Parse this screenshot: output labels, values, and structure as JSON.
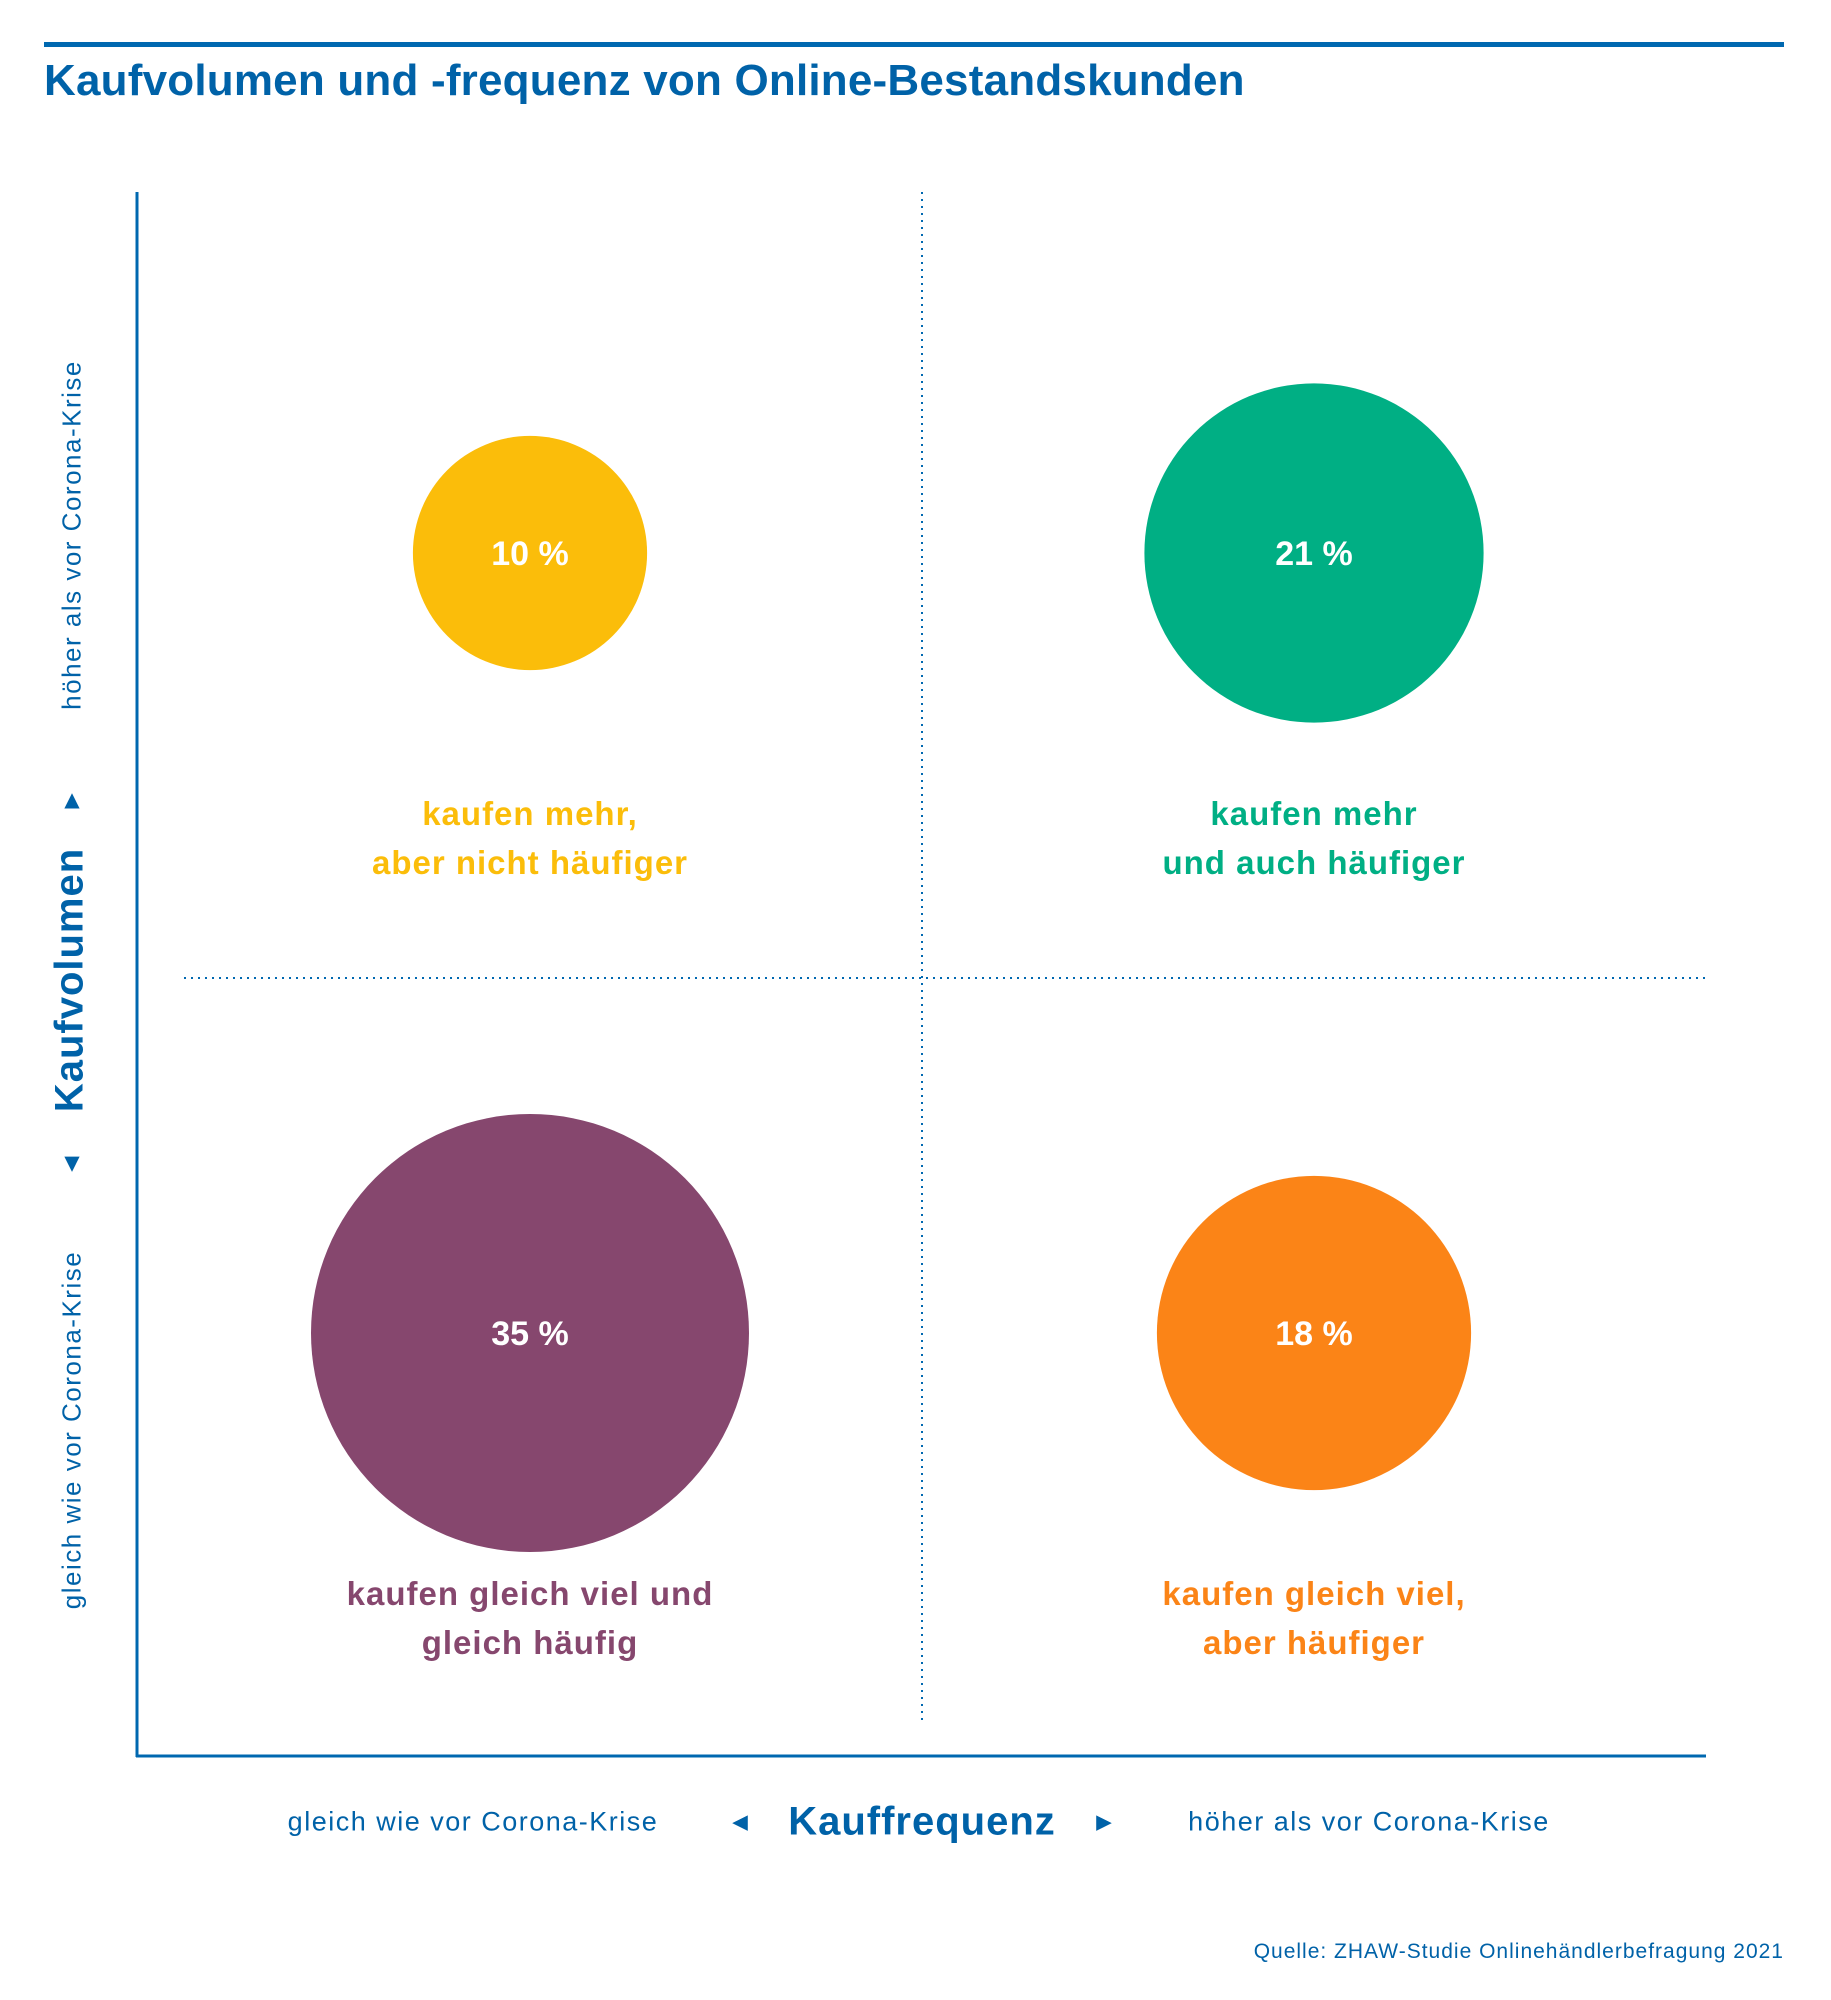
{
  "title": "Kaufvolumen und -frequenz von Online-Bestandskunden",
  "source": "Quelle: ZHAW-Studie Onlinehändlerbefragung 2021",
  "colors": {
    "axis": "#0068b0",
    "text": "#0062a8",
    "q10": "#fbbd0a",
    "q21": "#00af84",
    "q35": "#86476e",
    "q18": "#fb8417"
  },
  "chart_data": {
    "type": "scatter",
    "title": "Kaufvolumen und -frequenz von Online-Bestandskunden",
    "xlabel": "Kauffrequenz",
    "ylabel": "Kaufvolumen",
    "x_categories": [
      "gleich wie vor Corona-Krise",
      "höher als vor Corona-Krise"
    ],
    "y_categories": [
      "gleich wie vor Corona-Krise",
      "höher als vor Corona-Krise"
    ],
    "grid": "dotted quadrant dividers",
    "points": [
      {
        "x": "gleich wie vor Corona-Krise",
        "y": "höher als vor Corona-Krise",
        "value": 10,
        "label": "10 %",
        "caption": [
          "kaufen mehr,",
          "aber nicht häufiger"
        ],
        "color": "#fbbd0a"
      },
      {
        "x": "höher als vor Corona-Krise",
        "y": "höher als vor Corona-Krise",
        "value": 21,
        "label": "21 %",
        "caption": [
          "kaufen mehr",
          "und auch häufiger"
        ],
        "color": "#00af84"
      },
      {
        "x": "gleich wie vor Corona-Krise",
        "y": "gleich wie vor Corona-Krise",
        "value": 35,
        "label": "35 %",
        "caption": [
          "kaufen gleich viel und",
          "gleich häufig"
        ],
        "color": "#86476e"
      },
      {
        "x": "höher als vor Corona-Krise",
        "y": "gleich wie vor Corona-Krise",
        "value": 18,
        "label": "18 %",
        "caption": [
          "kaufen gleich viel,",
          "aber häufiger"
        ],
        "color": "#fb8417"
      }
    ]
  },
  "axes": {
    "y_title": "Kaufvolumen",
    "y_low": "gleich wie vor Corona-Krise",
    "y_high": "höher als vor Corona-Krise",
    "x_title": "Kauffrequenz",
    "x_low": "gleich wie vor Corona-Krise",
    "x_high": "höher als vor Corona-Krise",
    "arrow_up": "▲",
    "arrow_down": "▼",
    "arrow_left": "◄",
    "arrow_right": "►"
  }
}
